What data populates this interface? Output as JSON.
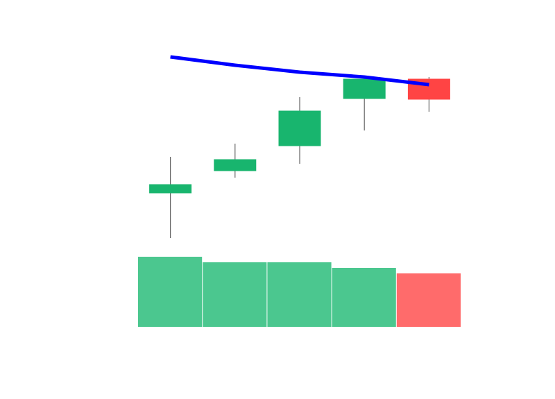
{
  "chart_data": {
    "type": "candlestick",
    "open": [
      122,
      154,
      190,
      258,
      286
    ],
    "high": [
      174,
      193,
      260,
      287,
      289
    ],
    "low": [
      57,
      144,
      164,
      212,
      239
    ],
    "close": [
      134,
      170,
      240,
      286,
      257
    ],
    "ylim": [
      40,
      340
    ],
    "up_color": "#18b56e",
    "down_color": "#ff4444",
    "line": {
      "color": "#0000ff",
      "values": [
        318,
        306,
        296,
        289,
        278
      ]
    },
    "volume": {
      "values": [
        101,
        93,
        93,
        85,
        77
      ],
      "ylim": [
        0,
        100
      ],
      "up_color": "#4bc78f",
      "down_color": "#ff6b6b"
    }
  }
}
